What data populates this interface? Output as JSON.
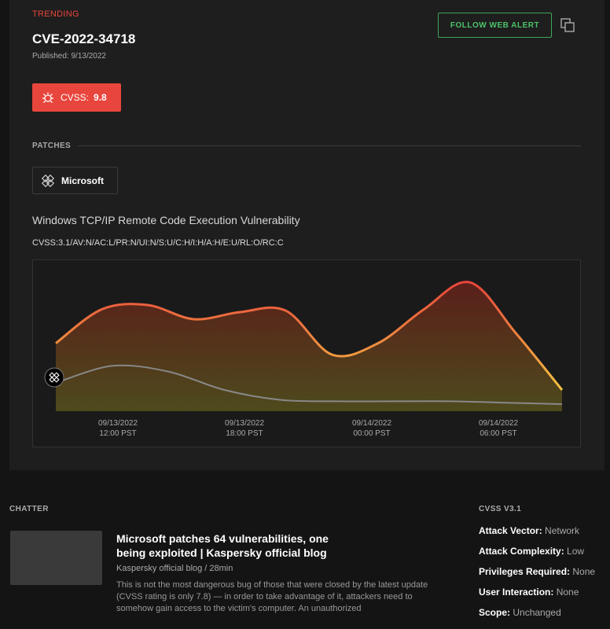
{
  "header": {
    "trending": "TRENDING",
    "cve_id": "CVE-2022-34718",
    "published": "Published: 9/13/2022",
    "follow_label": "FOLLOW WEB ALERT"
  },
  "cvss_badge": {
    "label": "CVSS:",
    "score": "9.8"
  },
  "patches": {
    "label": "PATCHES",
    "vendors": [
      {
        "name": "Microsoft",
        "icon": "microsoft-logo-icon"
      }
    ]
  },
  "vulnerability": {
    "title": "Windows TCP/IP Remote Code Execution Vulnerability",
    "vector": "CVSS:3.1/AV:N/AC:L/PR:N/UI:N/S:U/C:H/I:H/A:H/E:U/RL:O/RC:C"
  },
  "chart_data": {
    "type": "area",
    "x_ticks": [
      {
        "date": "09/13/2022",
        "time": "12:00 PST"
      },
      {
        "date": "09/13/2022",
        "time": "18:00 PST"
      },
      {
        "date": "09/14/2022",
        "time": "00:00 PST"
      },
      {
        "date": "09/14/2022",
        "time": "06:00 PST"
      }
    ],
    "series": [
      {
        "values": [
          48,
          72,
          75,
          65,
          70,
          71,
          40,
          48,
          72,
          91,
          55,
          15
        ]
      },
      {
        "values": [
          20,
          32,
          28,
          15,
          8,
          7,
          7,
          7,
          6,
          5
        ]
      }
    ],
    "ylim": [
      0,
      100
    ],
    "colors": {
      "primary_top": "#e8453c",
      "primary_bottom": "#f5c242",
      "secondary": "#888888",
      "fill_top": "#5a1f1a",
      "fill_bottom": "#4d4a1c"
    }
  },
  "chatter": {
    "label": "CHATTER",
    "article": {
      "title": "Microsoft patches 64 vulnerabilities, one being exploited | Kaspersky official blog",
      "source": "Kaspersky official blog / 28min",
      "body": "This is not the most dangerous bug of those that were closed by the latest update (CVSS rating is only 7.8) — in order to take advantage of it, attackers need to somehow gain access to the victim's computer. An unauthorized"
    }
  },
  "cvss_v3": {
    "label": "CVSS V3.1",
    "metrics": [
      {
        "key": "Attack Vector:",
        "value": "Network"
      },
      {
        "key": "Attack Complexity:",
        "value": "Low"
      },
      {
        "key": "Privileges Required:",
        "value": "None"
      },
      {
        "key": "User Interaction:",
        "value": "None"
      },
      {
        "key": "Scope:",
        "value": "Unchanged"
      }
    ]
  }
}
